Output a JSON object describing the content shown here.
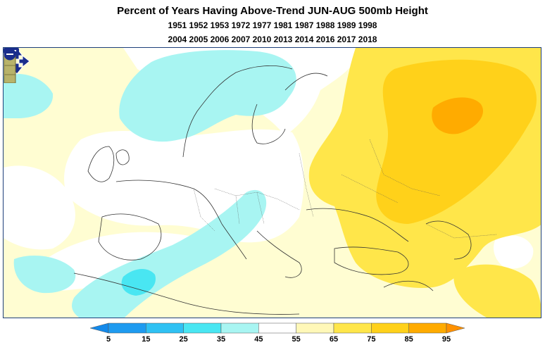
{
  "title": "Percent of Years Having Above-Trend JUN-AUG 500mb Height",
  "years_line1": "1951 1952 1953 1972 1977 1981 1987 1988 1989 1998",
  "years_line2": "2004 2005 2006 2007 2010 2013 2014 2016 2017 2018",
  "legend": {
    "labels": [
      "5",
      "15",
      "25",
      "35",
      "45",
      "55",
      "65",
      "75",
      "85",
      "95"
    ],
    "colors": [
      "#1e9bf0",
      "#2fc1f3",
      "#49e6f2",
      "#a8f5f2",
      "#ffffff",
      "#fff8b8",
      "#ffe64a",
      "#ffd11a",
      "#ffab00"
    ],
    "low_color": "#1389ea",
    "high_color": "#ff9100"
  },
  "map_controls": {
    "pan": "pan-arrows-icon",
    "zoom_in": "plus-icon",
    "zoom_out": "minus-icon"
  }
}
